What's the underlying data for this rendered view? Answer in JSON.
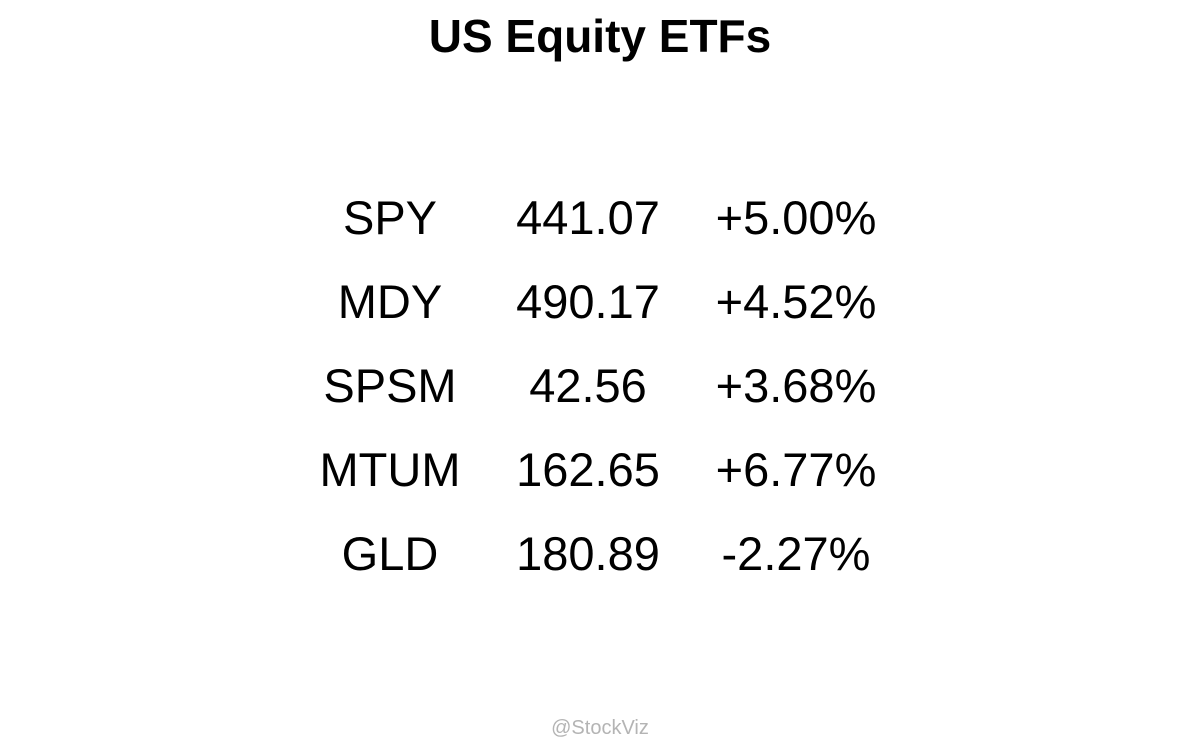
{
  "chart_data": {
    "type": "table",
    "title": "US Equity ETFs",
    "rows": [
      {
        "symbol": "SPY",
        "price": "441.07",
        "change": "+5.00%"
      },
      {
        "symbol": "MDY",
        "price": "490.17",
        "change": "+4.52%"
      },
      {
        "symbol": "SPSM",
        "price": "42.56",
        "change": "+3.68%"
      },
      {
        "symbol": "MTUM",
        "price": "162.65",
        "change": "+6.77%"
      },
      {
        "symbol": "GLD",
        "price": "180.89",
        "change": "-2.27%"
      }
    ]
  },
  "footer": {
    "credit": "@StockViz"
  },
  "colors": {
    "text": "#000000",
    "credit": "#b4b4b4",
    "background": "#ffffff"
  }
}
